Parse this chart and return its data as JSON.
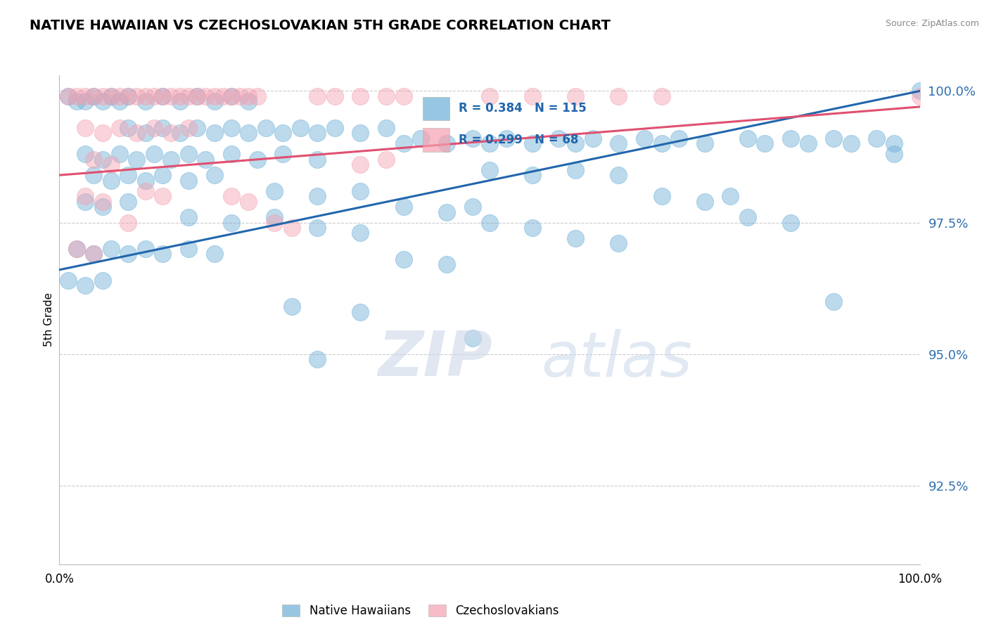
{
  "title": "NATIVE HAWAIIAN VS CZECHOSLOVAKIAN 5TH GRADE CORRELATION CHART",
  "source": "Source: ZipAtlas.com",
  "ylabel": "5th Grade",
  "xlim": [
    0,
    1
  ],
  "ylim": [
    0.91,
    1.003
  ],
  "yticks": [
    0.925,
    0.95,
    0.975,
    1.0
  ],
  "ytick_labels": [
    "92.5%",
    "95.0%",
    "97.5%",
    "100.0%"
  ],
  "blue_R": 0.384,
  "blue_N": 115,
  "pink_R": 0.299,
  "pink_N": 68,
  "blue_color": "#6baed6",
  "pink_color": "#f4a0b0",
  "blue_line_color": "#2166ac",
  "pink_line_color": "#e05070",
  "legend_label_blue": "Native Hawaiians",
  "legend_label_pink": "Czechoslovakians",
  "blue_line": [
    0.966,
    1.0
  ],
  "pink_line": [
    0.984,
    0.997
  ],
  "blue_scatter": [
    [
      0.01,
      0.999
    ],
    [
      0.02,
      0.998
    ],
    [
      0.03,
      0.998
    ],
    [
      0.04,
      0.999
    ],
    [
      0.05,
      0.998
    ],
    [
      0.06,
      0.999
    ],
    [
      0.07,
      0.998
    ],
    [
      0.08,
      0.999
    ],
    [
      0.1,
      0.998
    ],
    [
      0.12,
      0.999
    ],
    [
      0.14,
      0.998
    ],
    [
      0.16,
      0.999
    ],
    [
      0.18,
      0.998
    ],
    [
      0.2,
      0.999
    ],
    [
      0.22,
      0.998
    ],
    [
      0.08,
      0.993
    ],
    [
      0.1,
      0.992
    ],
    [
      0.12,
      0.993
    ],
    [
      0.14,
      0.992
    ],
    [
      0.16,
      0.993
    ],
    [
      0.18,
      0.992
    ],
    [
      0.2,
      0.993
    ],
    [
      0.22,
      0.992
    ],
    [
      0.24,
      0.993
    ],
    [
      0.26,
      0.992
    ],
    [
      0.28,
      0.993
    ],
    [
      0.3,
      0.992
    ],
    [
      0.32,
      0.993
    ],
    [
      0.35,
      0.992
    ],
    [
      0.38,
      0.993
    ],
    [
      0.4,
      0.99
    ],
    [
      0.42,
      0.991
    ],
    [
      0.45,
      0.99
    ],
    [
      0.48,
      0.991
    ],
    [
      0.5,
      0.99
    ],
    [
      0.52,
      0.991
    ],
    [
      0.55,
      0.99
    ],
    [
      0.58,
      0.991
    ],
    [
      0.6,
      0.99
    ],
    [
      0.62,
      0.991
    ],
    [
      0.65,
      0.99
    ],
    [
      0.68,
      0.991
    ],
    [
      0.7,
      0.99
    ],
    [
      0.72,
      0.991
    ],
    [
      0.75,
      0.99
    ],
    [
      0.03,
      0.988
    ],
    [
      0.05,
      0.987
    ],
    [
      0.07,
      0.988
    ],
    [
      0.09,
      0.987
    ],
    [
      0.11,
      0.988
    ],
    [
      0.13,
      0.987
    ],
    [
      0.15,
      0.988
    ],
    [
      0.17,
      0.987
    ],
    [
      0.2,
      0.988
    ],
    [
      0.23,
      0.987
    ],
    [
      0.26,
      0.988
    ],
    [
      0.3,
      0.987
    ],
    [
      0.04,
      0.984
    ],
    [
      0.06,
      0.983
    ],
    [
      0.08,
      0.984
    ],
    [
      0.1,
      0.983
    ],
    [
      0.12,
      0.984
    ],
    [
      0.15,
      0.983
    ],
    [
      0.18,
      0.984
    ],
    [
      0.8,
      0.991
    ],
    [
      0.82,
      0.99
    ],
    [
      0.85,
      0.991
    ],
    [
      0.87,
      0.99
    ],
    [
      0.9,
      0.991
    ],
    [
      0.92,
      0.99
    ],
    [
      0.95,
      0.991
    ],
    [
      0.97,
      0.99
    ],
    [
      0.5,
      0.985
    ],
    [
      0.55,
      0.984
    ],
    [
      0.6,
      0.985
    ],
    [
      0.65,
      0.984
    ],
    [
      0.25,
      0.981
    ],
    [
      0.3,
      0.98
    ],
    [
      0.35,
      0.981
    ],
    [
      0.4,
      0.978
    ],
    [
      0.45,
      0.977
    ],
    [
      0.48,
      0.978
    ],
    [
      0.5,
      0.975
    ],
    [
      0.55,
      0.974
    ],
    [
      0.6,
      0.972
    ],
    [
      0.65,
      0.971
    ],
    [
      0.03,
      0.979
    ],
    [
      0.05,
      0.978
    ],
    [
      0.08,
      0.979
    ],
    [
      0.15,
      0.976
    ],
    [
      0.2,
      0.975
    ],
    [
      0.25,
      0.976
    ],
    [
      0.3,
      0.974
    ],
    [
      0.35,
      0.973
    ],
    [
      0.02,
      0.97
    ],
    [
      0.04,
      0.969
    ],
    [
      0.06,
      0.97
    ],
    [
      0.08,
      0.969
    ],
    [
      0.1,
      0.97
    ],
    [
      0.12,
      0.969
    ],
    [
      0.15,
      0.97
    ],
    [
      0.18,
      0.969
    ],
    [
      0.01,
      0.964
    ],
    [
      0.03,
      0.963
    ],
    [
      0.05,
      0.964
    ],
    [
      0.4,
      0.968
    ],
    [
      0.45,
      0.967
    ],
    [
      0.27,
      0.959
    ],
    [
      0.35,
      0.958
    ],
    [
      0.48,
      0.953
    ],
    [
      0.3,
      0.949
    ],
    [
      0.7,
      0.98
    ],
    [
      0.75,
      0.979
    ],
    [
      0.78,
      0.98
    ],
    [
      0.8,
      0.976
    ],
    [
      0.85,
      0.975
    ],
    [
      0.9,
      0.96
    ],
    [
      0.97,
      0.988
    ],
    [
      1.0,
      1.0
    ]
  ],
  "pink_scatter": [
    [
      0.01,
      0.999
    ],
    [
      0.02,
      0.999
    ],
    [
      0.03,
      0.999
    ],
    [
      0.04,
      0.999
    ],
    [
      0.05,
      0.999
    ],
    [
      0.06,
      0.999
    ],
    [
      0.07,
      0.999
    ],
    [
      0.08,
      0.999
    ],
    [
      0.09,
      0.999
    ],
    [
      0.1,
      0.999
    ],
    [
      0.11,
      0.999
    ],
    [
      0.12,
      0.999
    ],
    [
      0.13,
      0.999
    ],
    [
      0.14,
      0.999
    ],
    [
      0.15,
      0.999
    ],
    [
      0.16,
      0.999
    ],
    [
      0.17,
      0.999
    ],
    [
      0.18,
      0.999
    ],
    [
      0.19,
      0.999
    ],
    [
      0.2,
      0.999
    ],
    [
      0.21,
      0.999
    ],
    [
      0.22,
      0.999
    ],
    [
      0.23,
      0.999
    ],
    [
      0.3,
      0.999
    ],
    [
      0.32,
      0.999
    ],
    [
      0.35,
      0.999
    ],
    [
      0.38,
      0.999
    ],
    [
      0.4,
      0.999
    ],
    [
      0.5,
      0.999
    ],
    [
      0.55,
      0.999
    ],
    [
      0.6,
      0.999
    ],
    [
      0.65,
      0.999
    ],
    [
      0.7,
      0.999
    ],
    [
      0.03,
      0.993
    ],
    [
      0.05,
      0.992
    ],
    [
      0.07,
      0.993
    ],
    [
      0.09,
      0.992
    ],
    [
      0.11,
      0.993
    ],
    [
      0.13,
      0.992
    ],
    [
      0.15,
      0.993
    ],
    [
      0.04,
      0.987
    ],
    [
      0.06,
      0.986
    ],
    [
      0.35,
      0.986
    ],
    [
      0.38,
      0.987
    ],
    [
      0.03,
      0.98
    ],
    [
      0.05,
      0.979
    ],
    [
      0.1,
      0.981
    ],
    [
      0.12,
      0.98
    ],
    [
      0.08,
      0.975
    ],
    [
      0.2,
      0.98
    ],
    [
      0.22,
      0.979
    ],
    [
      0.02,
      0.97
    ],
    [
      0.04,
      0.969
    ],
    [
      0.25,
      0.975
    ],
    [
      0.27,
      0.974
    ],
    [
      1.0,
      0.999
    ]
  ]
}
